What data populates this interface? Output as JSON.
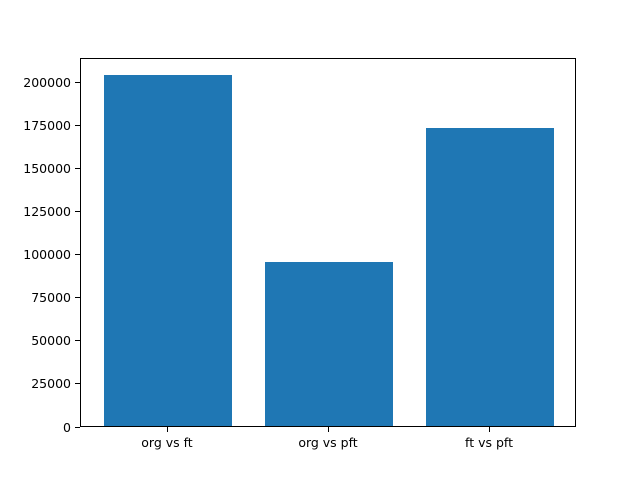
{
  "chart_data": {
    "type": "bar",
    "categories": [
      "org vs ft",
      "org vs pft",
      "ft vs pft"
    ],
    "values": [
      204000,
      95000,
      173000
    ],
    "title": "",
    "xlabel": "",
    "ylabel": "",
    "yticks": [
      0,
      25000,
      50000,
      75000,
      100000,
      125000,
      150000,
      175000,
      200000
    ],
    "ylim": [
      0,
      214200
    ],
    "xlim": [
      -0.54,
      2.54
    ],
    "bar_positions": [
      0,
      1,
      2
    ],
    "bar_width": 0.8,
    "bar_color": "#1f77b4",
    "grid": false,
    "legend": null
  },
  "figure": {
    "background_color": "#ffffff",
    "spine_color": "#000000",
    "tick_color": "#000000",
    "tick_label_color": "#000000"
  }
}
